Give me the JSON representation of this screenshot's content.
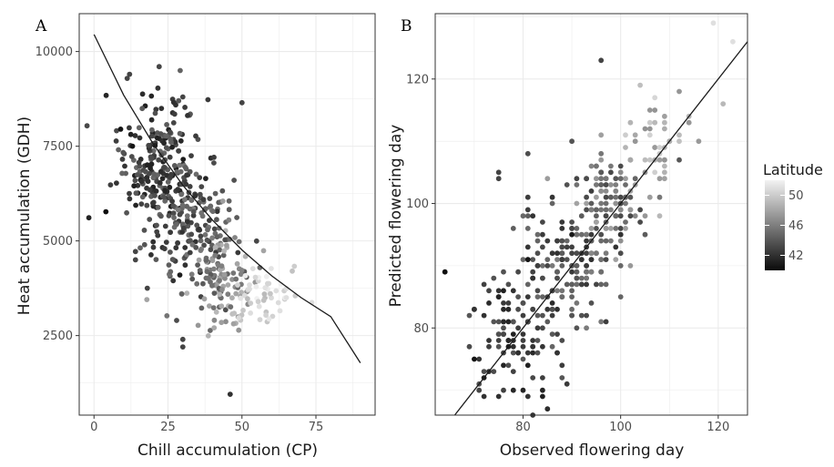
{
  "chart_data": [
    {
      "panel": "A",
      "type": "scatter",
      "xlabel": "Chill accumulation (CP)",
      "ylabel": "Heat accumulation (GDH)",
      "xlim": [
        -5,
        95
      ],
      "ylim": [
        400,
        11000
      ],
      "xticks": [
        0,
        25,
        50,
        75
      ],
      "yticks": [
        2500,
        5000,
        7500,
        10000
      ],
      "grid": true,
      "color_encoding": "Latitude",
      "fit_curve": {
        "type": "exponential",
        "x": [
          0,
          10,
          20,
          30,
          40,
          50,
          60,
          70,
          80,
          90
        ],
        "y": [
          10450,
          8850,
          7560,
          6470,
          5550,
          4760,
          4080,
          3500,
          3000,
          1780
        ]
      },
      "clusters": [
        {
          "x_center": 22,
          "x_spread": 7,
          "y_center": 7000,
          "y_spread": 900,
          "n": 230,
          "latitude": [
            41,
            45
          ]
        },
        {
          "x_center": 32,
          "x_spread": 7,
          "y_center": 5300,
          "y_spread": 800,
          "n": 150,
          "latitude": [
            42,
            46
          ]
        },
        {
          "x_center": 42,
          "x_spread": 6,
          "y_center": 4000,
          "y_spread": 650,
          "n": 110,
          "latitude": [
            44,
            49
          ]
        },
        {
          "x_center": 57,
          "x_spread": 6,
          "y_center": 3500,
          "y_spread": 450,
          "n": 55,
          "latitude": [
            49,
            52
          ]
        }
      ],
      "points": [
        {
          "x": 4,
          "y": 5770,
          "lat": 40.2
        },
        {
          "x": 9,
          "y": 7950,
          "lat": 40.5
        },
        {
          "x": 12,
          "y": 9400,
          "lat": 43
        },
        {
          "x": 14,
          "y": 4720,
          "lat": 43
        },
        {
          "x": 14,
          "y": 4500,
          "lat": 43
        },
        {
          "x": 22,
          "y": 9600,
          "lat": 43
        },
        {
          "x": 30,
          "y": 8800,
          "lat": 43
        },
        {
          "x": 50,
          "y": 8650,
          "lat": 43
        },
        {
          "x": 30,
          "y": 2200,
          "lat": 43
        },
        {
          "x": 30,
          "y": 2400,
          "lat": 43
        },
        {
          "x": 46,
          "y": 950,
          "lat": 42
        },
        {
          "x": 13,
          "y": 7500,
          "lat": 40.5
        },
        {
          "x": 18,
          "y": 3750,
          "lat": 43
        },
        {
          "x": 29,
          "y": 4100,
          "lat": 41
        },
        {
          "x": 68,
          "y": 3550,
          "lat": 50
        },
        {
          "x": 65,
          "y": 3500,
          "lat": 51
        }
      ]
    },
    {
      "panel": "B",
      "type": "scatter",
      "xlabel": "Observed flowering day",
      "ylabel": "Predicted flowering day",
      "xlim": [
        62,
        126
      ],
      "ylim": [
        66,
        130.5
      ],
      "xticks": [
        80,
        100,
        120
      ],
      "yticks": [
        80,
        100,
        120
      ],
      "grid": true,
      "color_encoding": "Latitude",
      "reference_line": {
        "x": [
          62,
          126
        ],
        "y": [
          62,
          126
        ]
      },
      "clusters": [
        {
          "x_center": 78,
          "x_spread": 5,
          "y_center": 79,
          "y_spread": 5,
          "n": 110,
          "latitude": [
            41,
            44
          ]
        },
        {
          "x_center": 89,
          "x_spread": 5,
          "y_center": 90,
          "y_spread": 5,
          "n": 170,
          "latitude": [
            42,
            46
          ]
        },
        {
          "x_center": 98,
          "x_spread": 4,
          "y_center": 100,
          "y_spread": 4,
          "n": 110,
          "latitude": [
            43,
            48
          ]
        },
        {
          "x_center": 108,
          "x_spread": 4,
          "y_center": 110,
          "y_spread": 4,
          "n": 45,
          "latitude": [
            47,
            51
          ]
        }
      ],
      "points": [
        {
          "x": 64,
          "y": 89,
          "lat": 40.2
        },
        {
          "x": 75,
          "y": 104,
          "lat": 43
        },
        {
          "x": 75,
          "y": 105,
          "lat": 43
        },
        {
          "x": 96,
          "y": 123,
          "lat": 43
        },
        {
          "x": 91,
          "y": 104,
          "lat": 43
        },
        {
          "x": 72,
          "y": 69,
          "lat": 42
        },
        {
          "x": 75,
          "y": 69,
          "lat": 42
        },
        {
          "x": 119,
          "y": 129,
          "lat": 51
        },
        {
          "x": 123,
          "y": 126,
          "lat": 51
        },
        {
          "x": 121,
          "y": 116,
          "lat": 49
        },
        {
          "x": 112,
          "y": 107,
          "lat": 44
        },
        {
          "x": 108,
          "y": 98,
          "lat": 49
        },
        {
          "x": 81,
          "y": 91,
          "lat": 40.5
        },
        {
          "x": 70,
          "y": 75,
          "lat": 40.5
        },
        {
          "x": 90,
          "y": 95,
          "lat": 40.7
        }
      ]
    }
  ],
  "labels": {
    "panel_a": "A",
    "panel_b": "B",
    "a_xlabel": "Chill accumulation (CP)",
    "a_ylabel": "Heat accumulation (GDH)",
    "b_xlabel": "Observed flowering day",
    "b_ylabel": "Predicted flowering day"
  },
  "legend": {
    "title": "Latitude",
    "ticks": [
      "42",
      "46",
      "50"
    ],
    "tick_values": [
      42,
      46,
      50
    ],
    "range": [
      40,
      52
    ],
    "colors": {
      "low": "#0a0a0a",
      "high": "#f2f2f2"
    }
  },
  "colors": {
    "panel_background": "#ffffff",
    "panel_border": "#333333",
    "grid": "#ebebeb",
    "curve": "#1a1a1a"
  }
}
